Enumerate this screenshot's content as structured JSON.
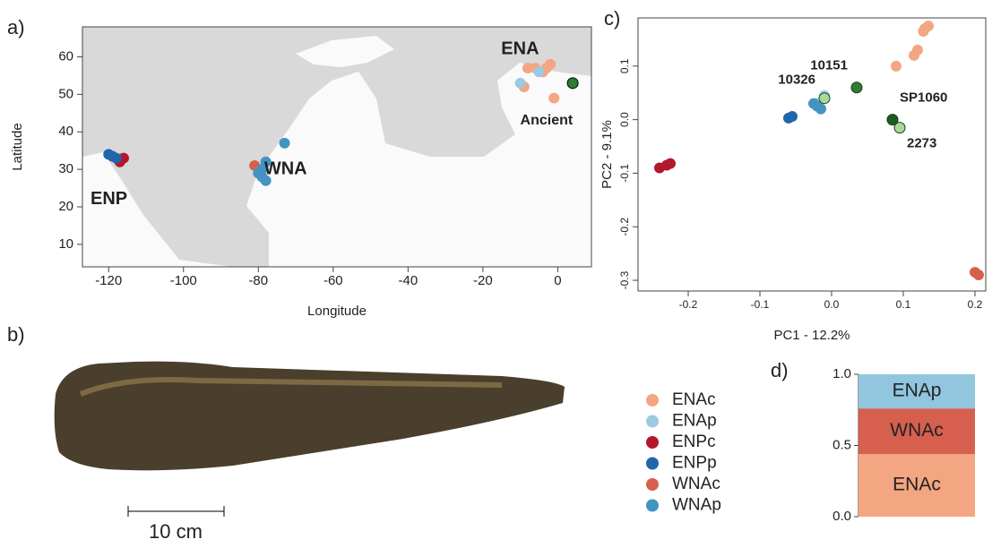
{
  "chart_data": [
    {
      "type": "scatter",
      "panel_label": "a)",
      "x_label": "Longitude",
      "y_label": "Latitude",
      "xlim": [
        -127,
        9
      ],
      "ylim": [
        4,
        68
      ],
      "xticks": [
        -120,
        -100,
        -80,
        -60,
        -40,
        -20,
        0
      ],
      "yticks": [
        10,
        20,
        30,
        40,
        50,
        60
      ],
      "series": [
        {
          "name": "ENAc",
          "color": "#f4a582",
          "x": [
            -9,
            -6,
            -3,
            -2,
            -1,
            -4,
            -8
          ],
          "values": [
            52,
            57,
            57,
            58,
            49,
            56,
            57
          ]
        },
        {
          "name": "ENAp",
          "color": "#9ecae1",
          "x": [
            -10,
            -5
          ],
          "values": [
            53,
            56
          ]
        },
        {
          "name": "ENPc",
          "color": "#b2182b",
          "x": [
            -117,
            -116
          ],
          "values": [
            32,
            33
          ]
        },
        {
          "name": "ENPp",
          "color": "#2166ac",
          "x": [
            -120,
            -119,
            -118
          ],
          "values": [
            34,
            33.5,
            33
          ]
        },
        {
          "name": "WNAc",
          "color": "#d6604d",
          "x": [
            -81
          ],
          "values": [
            31
          ]
        },
        {
          "name": "WNAp",
          "color": "#4393c3",
          "x": [
            -79,
            -78,
            -79,
            -80,
            -78,
            -73
          ],
          "values": [
            30,
            32,
            28,
            29,
            27,
            37
          ]
        },
        {
          "name": "Ancient",
          "color": "#2e7d32",
          "x": [
            4
          ],
          "values": [
            53
          ]
        }
      ],
      "annotations": [
        "ENA",
        "WNA",
        "ENP"
      ]
    },
    {
      "type": "scatter",
      "panel_label": "c)",
      "x_label": "PC1 - 12.2%",
      "y_label": "PC2 - 9.1%",
      "xlim": [
        -0.27,
        0.215
      ],
      "ylim": [
        -0.32,
        0.19
      ],
      "xticks": [
        -0.2,
        -0.1,
        {
          "value": 0,
          "label": "0.0"
        },
        0.1,
        0.2
      ],
      "yticks": [
        -0.3,
        -0.2,
        -0.1,
        {
          "value": 0,
          "label": "0.0"
        },
        0.1
      ],
      "series": [
        {
          "color": "#f4a582",
          "x": [
            0.13,
            0.135,
            0.12,
            0.115,
            0.09,
            0.128
          ],
          "values": [
            0.17,
            0.175,
            0.13,
            0.12,
            0.1,
            0.165
          ]
        },
        {
          "color": "#9ecae1",
          "x": [
            -0.01,
            -0.02
          ],
          "values": [
            0.045,
            0.03
          ]
        },
        {
          "color": "#b2182b",
          "x": [
            -0.24,
            -0.23,
            -0.225
          ],
          "values": [
            -0.09,
            -0.085,
            -0.082
          ]
        },
        {
          "color": "#2166ac",
          "x": [
            -0.06,
            -0.055
          ],
          "values": [
            0.003,
            0.006
          ]
        },
        {
          "color": "#d6604d",
          "x": [
            0.2,
            0.205
          ],
          "values": [
            -0.285,
            -0.29
          ]
        },
        {
          "color": "#4393c3",
          "x": [
            -0.02,
            -0.025,
            -0.015
          ],
          "values": [
            0.025,
            0.03,
            0.02
          ]
        }
      ],
      "points": [
        {
          "label": "10151",
          "x": 0.035,
          "y": 0.06,
          "color": "#2e7d32"
        },
        {
          "label": "10326",
          "x": -0.01,
          "y": 0.04,
          "color": "#a6d99a"
        },
        {
          "label": "SP1060",
          "x": 0.085,
          "y": 0.0,
          "color": "#1b5e20"
        },
        {
          "label": "2273",
          "x": 0.095,
          "y": -0.015,
          "color": "#a6d99a"
        }
      ]
    },
    {
      "type": "stacked-bar",
      "panel_label": "d)",
      "categories": [
        null
      ],
      "ylim": [
        0,
        1
      ],
      "yticks": [
        {
          "value": 0,
          "label": "0.0"
        },
        0.5,
        {
          "value": 1,
          "label": "1.0"
        }
      ],
      "series": [
        {
          "name": "ENAc",
          "color": "#f4a582",
          "values": [
            0.44
          ]
        },
        {
          "name": "WNAc",
          "color": "#d6604d",
          "values": [
            0.32
          ]
        },
        {
          "name": "ENAp",
          "color": "#92c5de",
          "values": [
            0.24
          ]
        }
      ]
    }
  ],
  "photo": {
    "panel_label": "b)",
    "scale_bar": "10 cm"
  }
}
